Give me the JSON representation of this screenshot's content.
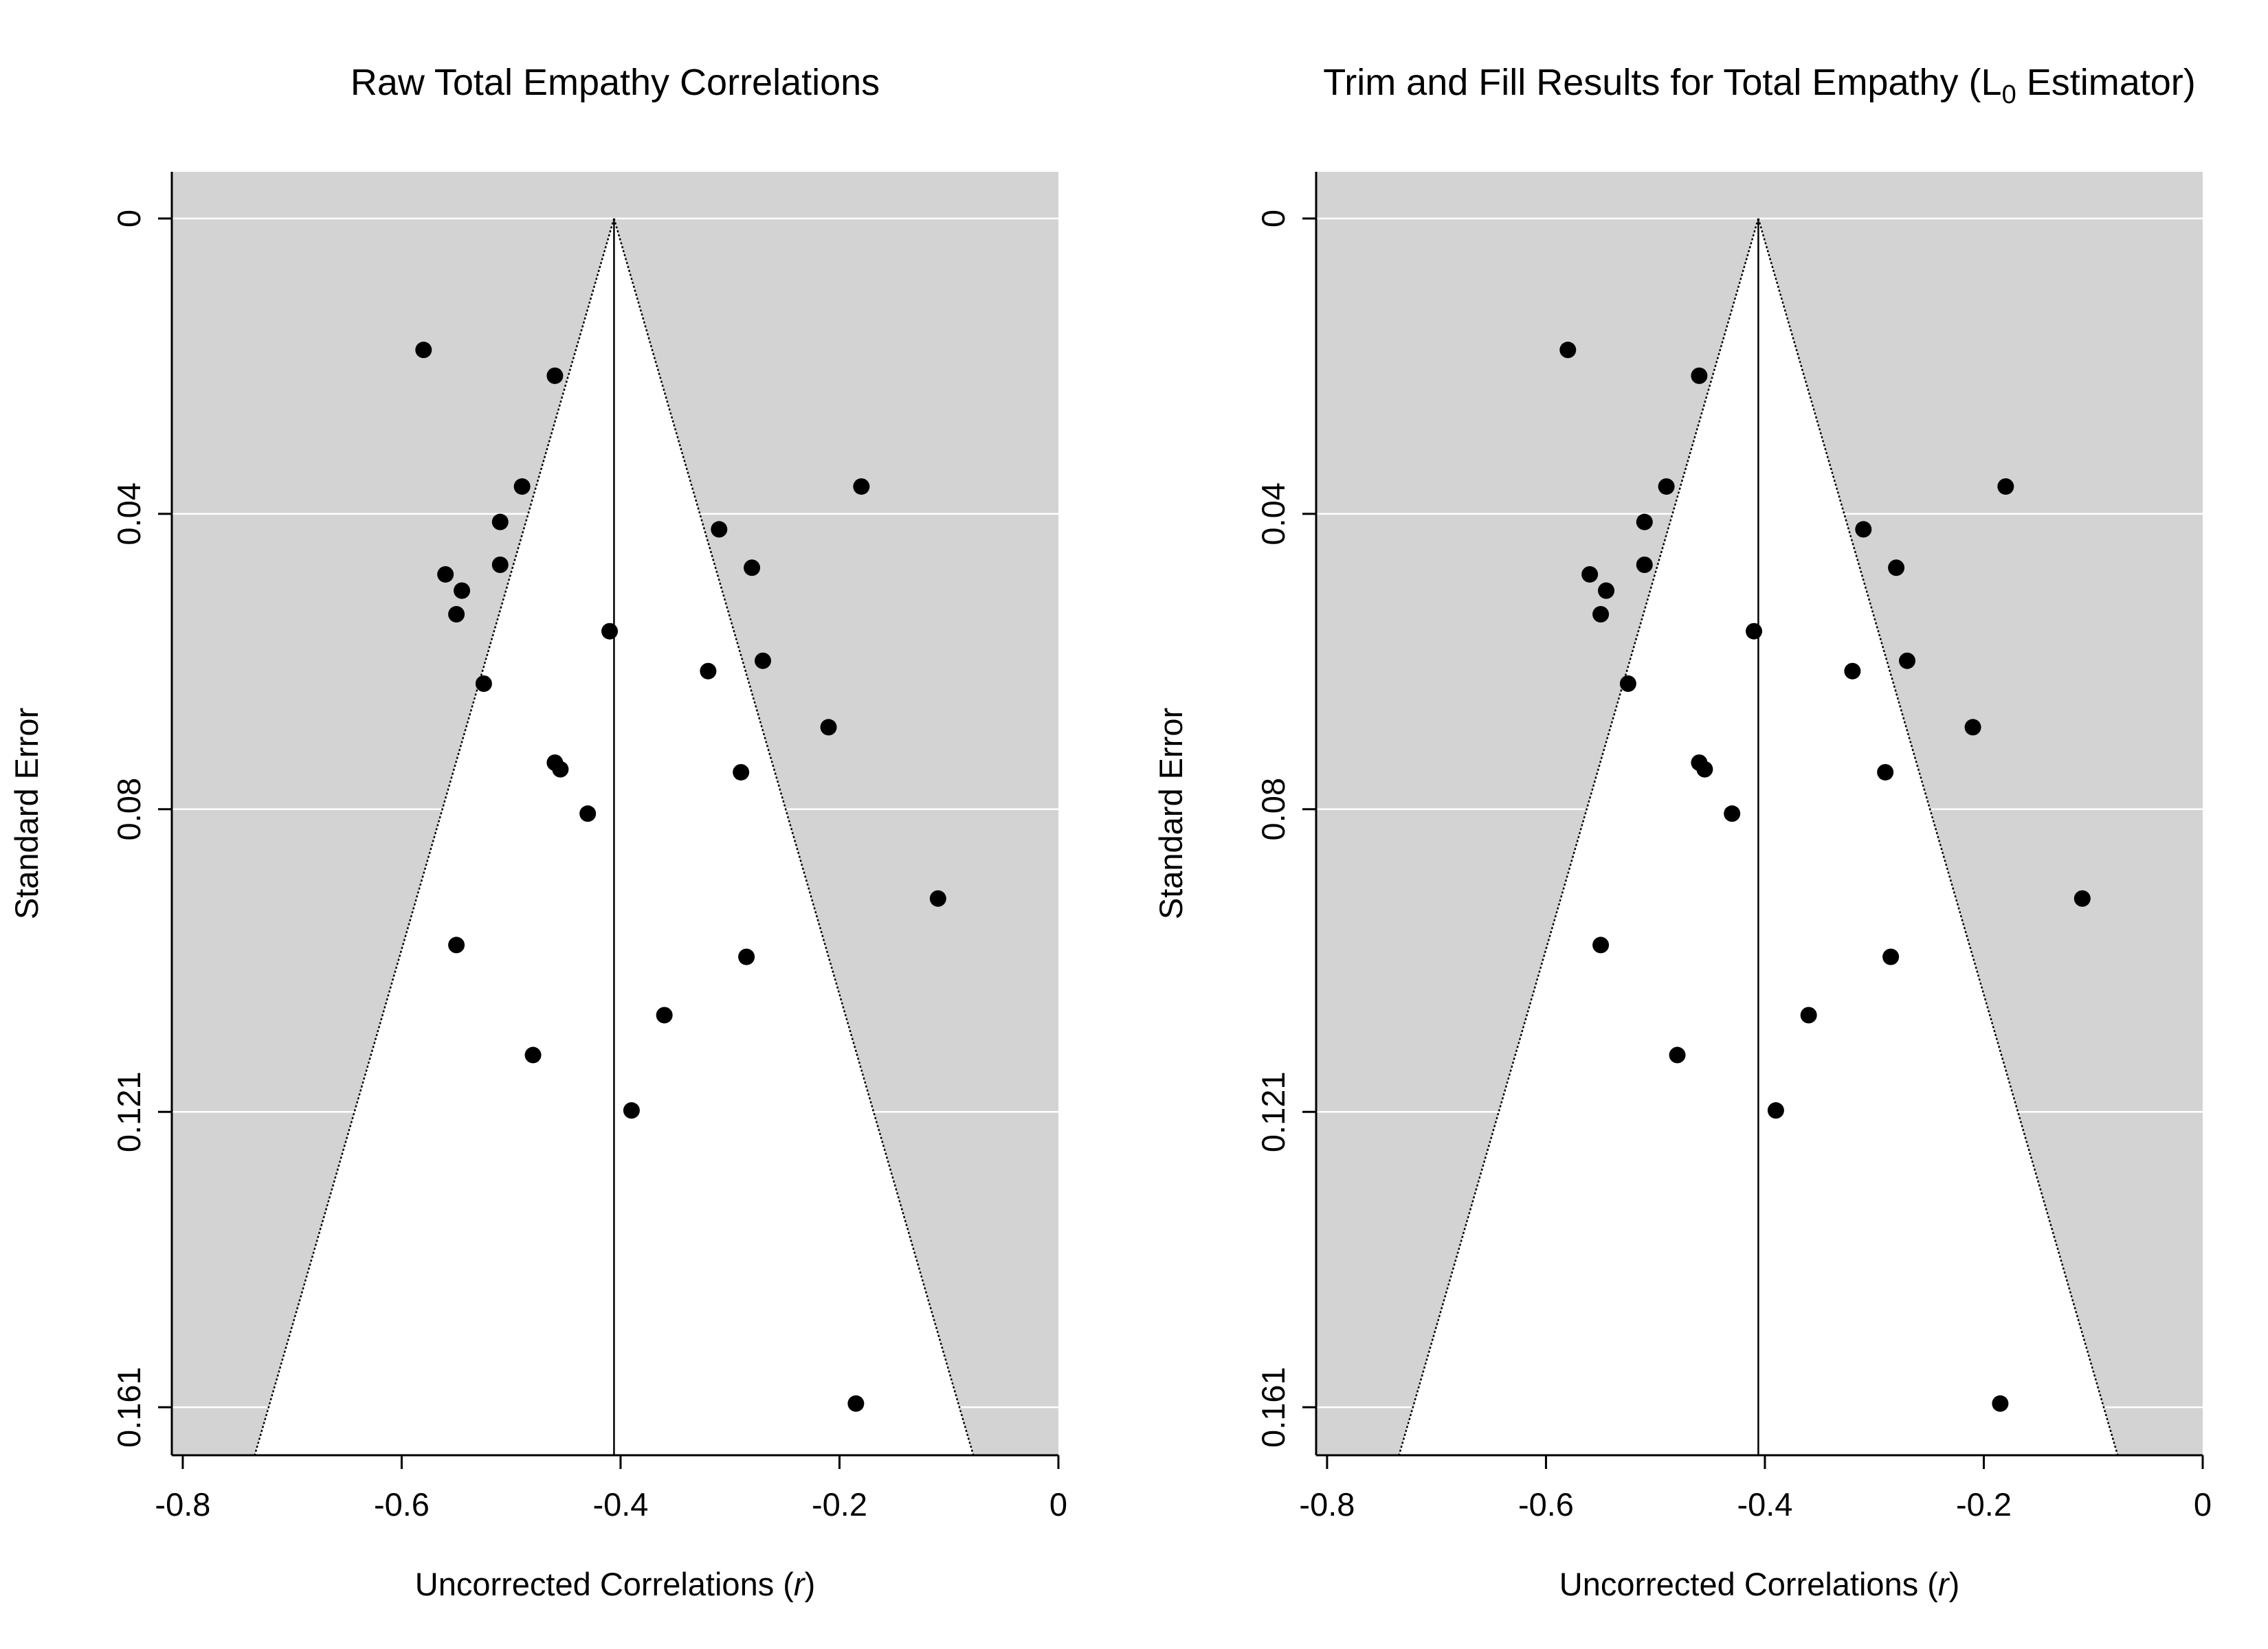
{
  "chart_data": [
    {
      "type": "scatter",
      "title": "Raw Total Empathy Correlations",
      "title_subscript": "",
      "title_suffix": "",
      "xlabel": "Uncorrected Correlations (",
      "xlabel_var": "r",
      "xlabel_suffix": ")",
      "ylabel": "Standard Error",
      "xlim": [
        -0.81,
        0.0
      ],
      "ylim_reversed": [
        0.0,
        0.1675
      ],
      "x_ticks": [
        -0.8,
        -0.6,
        -0.4,
        -0.2,
        0.0
      ],
      "x_tick_labels": [
        "-0.8",
        "-0.6",
        "-0.4",
        "-0.2",
        "0"
      ],
      "y_ticks": [
        0.0,
        0.04,
        0.08,
        0.121,
        0.161
      ],
      "y_tick_labels": [
        "0",
        "0.04",
        "0.08",
        "0.121",
        "0.161"
      ],
      "grid": "horizontal",
      "center_estimate": -0.406,
      "funnel_z": 1.96,
      "colors": {
        "background_shade": "#d3d3d3",
        "funnel_interior": "#ffffff",
        "points": "#000000",
        "grid": "#ffffff"
      },
      "points": [
        {
          "x": -0.58,
          "y": 0.0178
        },
        {
          "x": -0.46,
          "y": 0.0213
        },
        {
          "x": -0.49,
          "y": 0.0363
        },
        {
          "x": -0.51,
          "y": 0.0411
        },
        {
          "x": -0.51,
          "y": 0.0469
        },
        {
          "x": -0.56,
          "y": 0.0482
        },
        {
          "x": -0.545,
          "y": 0.0504
        },
        {
          "x": -0.55,
          "y": 0.0536
        },
        {
          "x": -0.525,
          "y": 0.063
        },
        {
          "x": -0.46,
          "y": 0.0737
        },
        {
          "x": -0.455,
          "y": 0.0746
        },
        {
          "x": -0.43,
          "y": 0.0806
        },
        {
          "x": -0.41,
          "y": 0.0559
        },
        {
          "x": -0.18,
          "y": 0.0363
        },
        {
          "x": -0.31,
          "y": 0.0421
        },
        {
          "x": -0.28,
          "y": 0.0473
        },
        {
          "x": -0.27,
          "y": 0.0599
        },
        {
          "x": -0.32,
          "y": 0.0613
        },
        {
          "x": -0.21,
          "y": 0.0689
        },
        {
          "x": -0.29,
          "y": 0.075
        },
        {
          "x": -0.11,
          "y": 0.0921
        },
        {
          "x": -0.55,
          "y": 0.0984
        },
        {
          "x": -0.285,
          "y": 0.1
        },
        {
          "x": -0.36,
          "y": 0.1079
        },
        {
          "x": -0.48,
          "y": 0.1133
        },
        {
          "x": -0.39,
          "y": 0.1208
        },
        {
          "x": -0.185,
          "y": 0.1605
        }
      ]
    },
    {
      "type": "scatter",
      "title": "Trim and Fill Results for Total Empathy (L",
      "title_subscript": "0",
      "title_suffix": " Estimator)",
      "xlabel": "Uncorrected Correlations (",
      "xlabel_var": "r",
      "xlabel_suffix": ")",
      "ylabel": "Standard Error",
      "xlim": [
        -0.81,
        0.0
      ],
      "ylim_reversed": [
        0.0,
        0.1675
      ],
      "x_ticks": [
        -0.8,
        -0.6,
        -0.4,
        -0.2,
        0.0
      ],
      "x_tick_labels": [
        "-0.8",
        "-0.6",
        "-0.4",
        "-0.2",
        "0"
      ],
      "y_ticks": [
        0.0,
        0.04,
        0.08,
        0.121,
        0.161
      ],
      "y_tick_labels": [
        "0",
        "0.04",
        "0.08",
        "0.121",
        "0.161"
      ],
      "grid": "horizontal",
      "center_estimate": -0.406,
      "funnel_z": 1.96,
      "colors": {
        "background_shade": "#d3d3d3",
        "funnel_interior": "#ffffff",
        "points": "#000000",
        "grid": "#ffffff"
      },
      "points": [
        {
          "x": -0.58,
          "y": 0.0178
        },
        {
          "x": -0.46,
          "y": 0.0213
        },
        {
          "x": -0.49,
          "y": 0.0363
        },
        {
          "x": -0.51,
          "y": 0.0411
        },
        {
          "x": -0.51,
          "y": 0.0469
        },
        {
          "x": -0.56,
          "y": 0.0482
        },
        {
          "x": -0.545,
          "y": 0.0504
        },
        {
          "x": -0.55,
          "y": 0.0536
        },
        {
          "x": -0.525,
          "y": 0.063
        },
        {
          "x": -0.46,
          "y": 0.0737
        },
        {
          "x": -0.455,
          "y": 0.0746
        },
        {
          "x": -0.43,
          "y": 0.0806
        },
        {
          "x": -0.41,
          "y": 0.0559
        },
        {
          "x": -0.18,
          "y": 0.0363
        },
        {
          "x": -0.31,
          "y": 0.0421
        },
        {
          "x": -0.28,
          "y": 0.0473
        },
        {
          "x": -0.27,
          "y": 0.0599
        },
        {
          "x": -0.32,
          "y": 0.0613
        },
        {
          "x": -0.21,
          "y": 0.0689
        },
        {
          "x": -0.29,
          "y": 0.075
        },
        {
          "x": -0.11,
          "y": 0.0921
        },
        {
          "x": -0.55,
          "y": 0.0984
        },
        {
          "x": -0.285,
          "y": 0.1
        },
        {
          "x": -0.36,
          "y": 0.1079
        },
        {
          "x": -0.48,
          "y": 0.1133
        },
        {
          "x": -0.39,
          "y": 0.1208
        },
        {
          "x": -0.185,
          "y": 0.1605
        }
      ]
    }
  ]
}
